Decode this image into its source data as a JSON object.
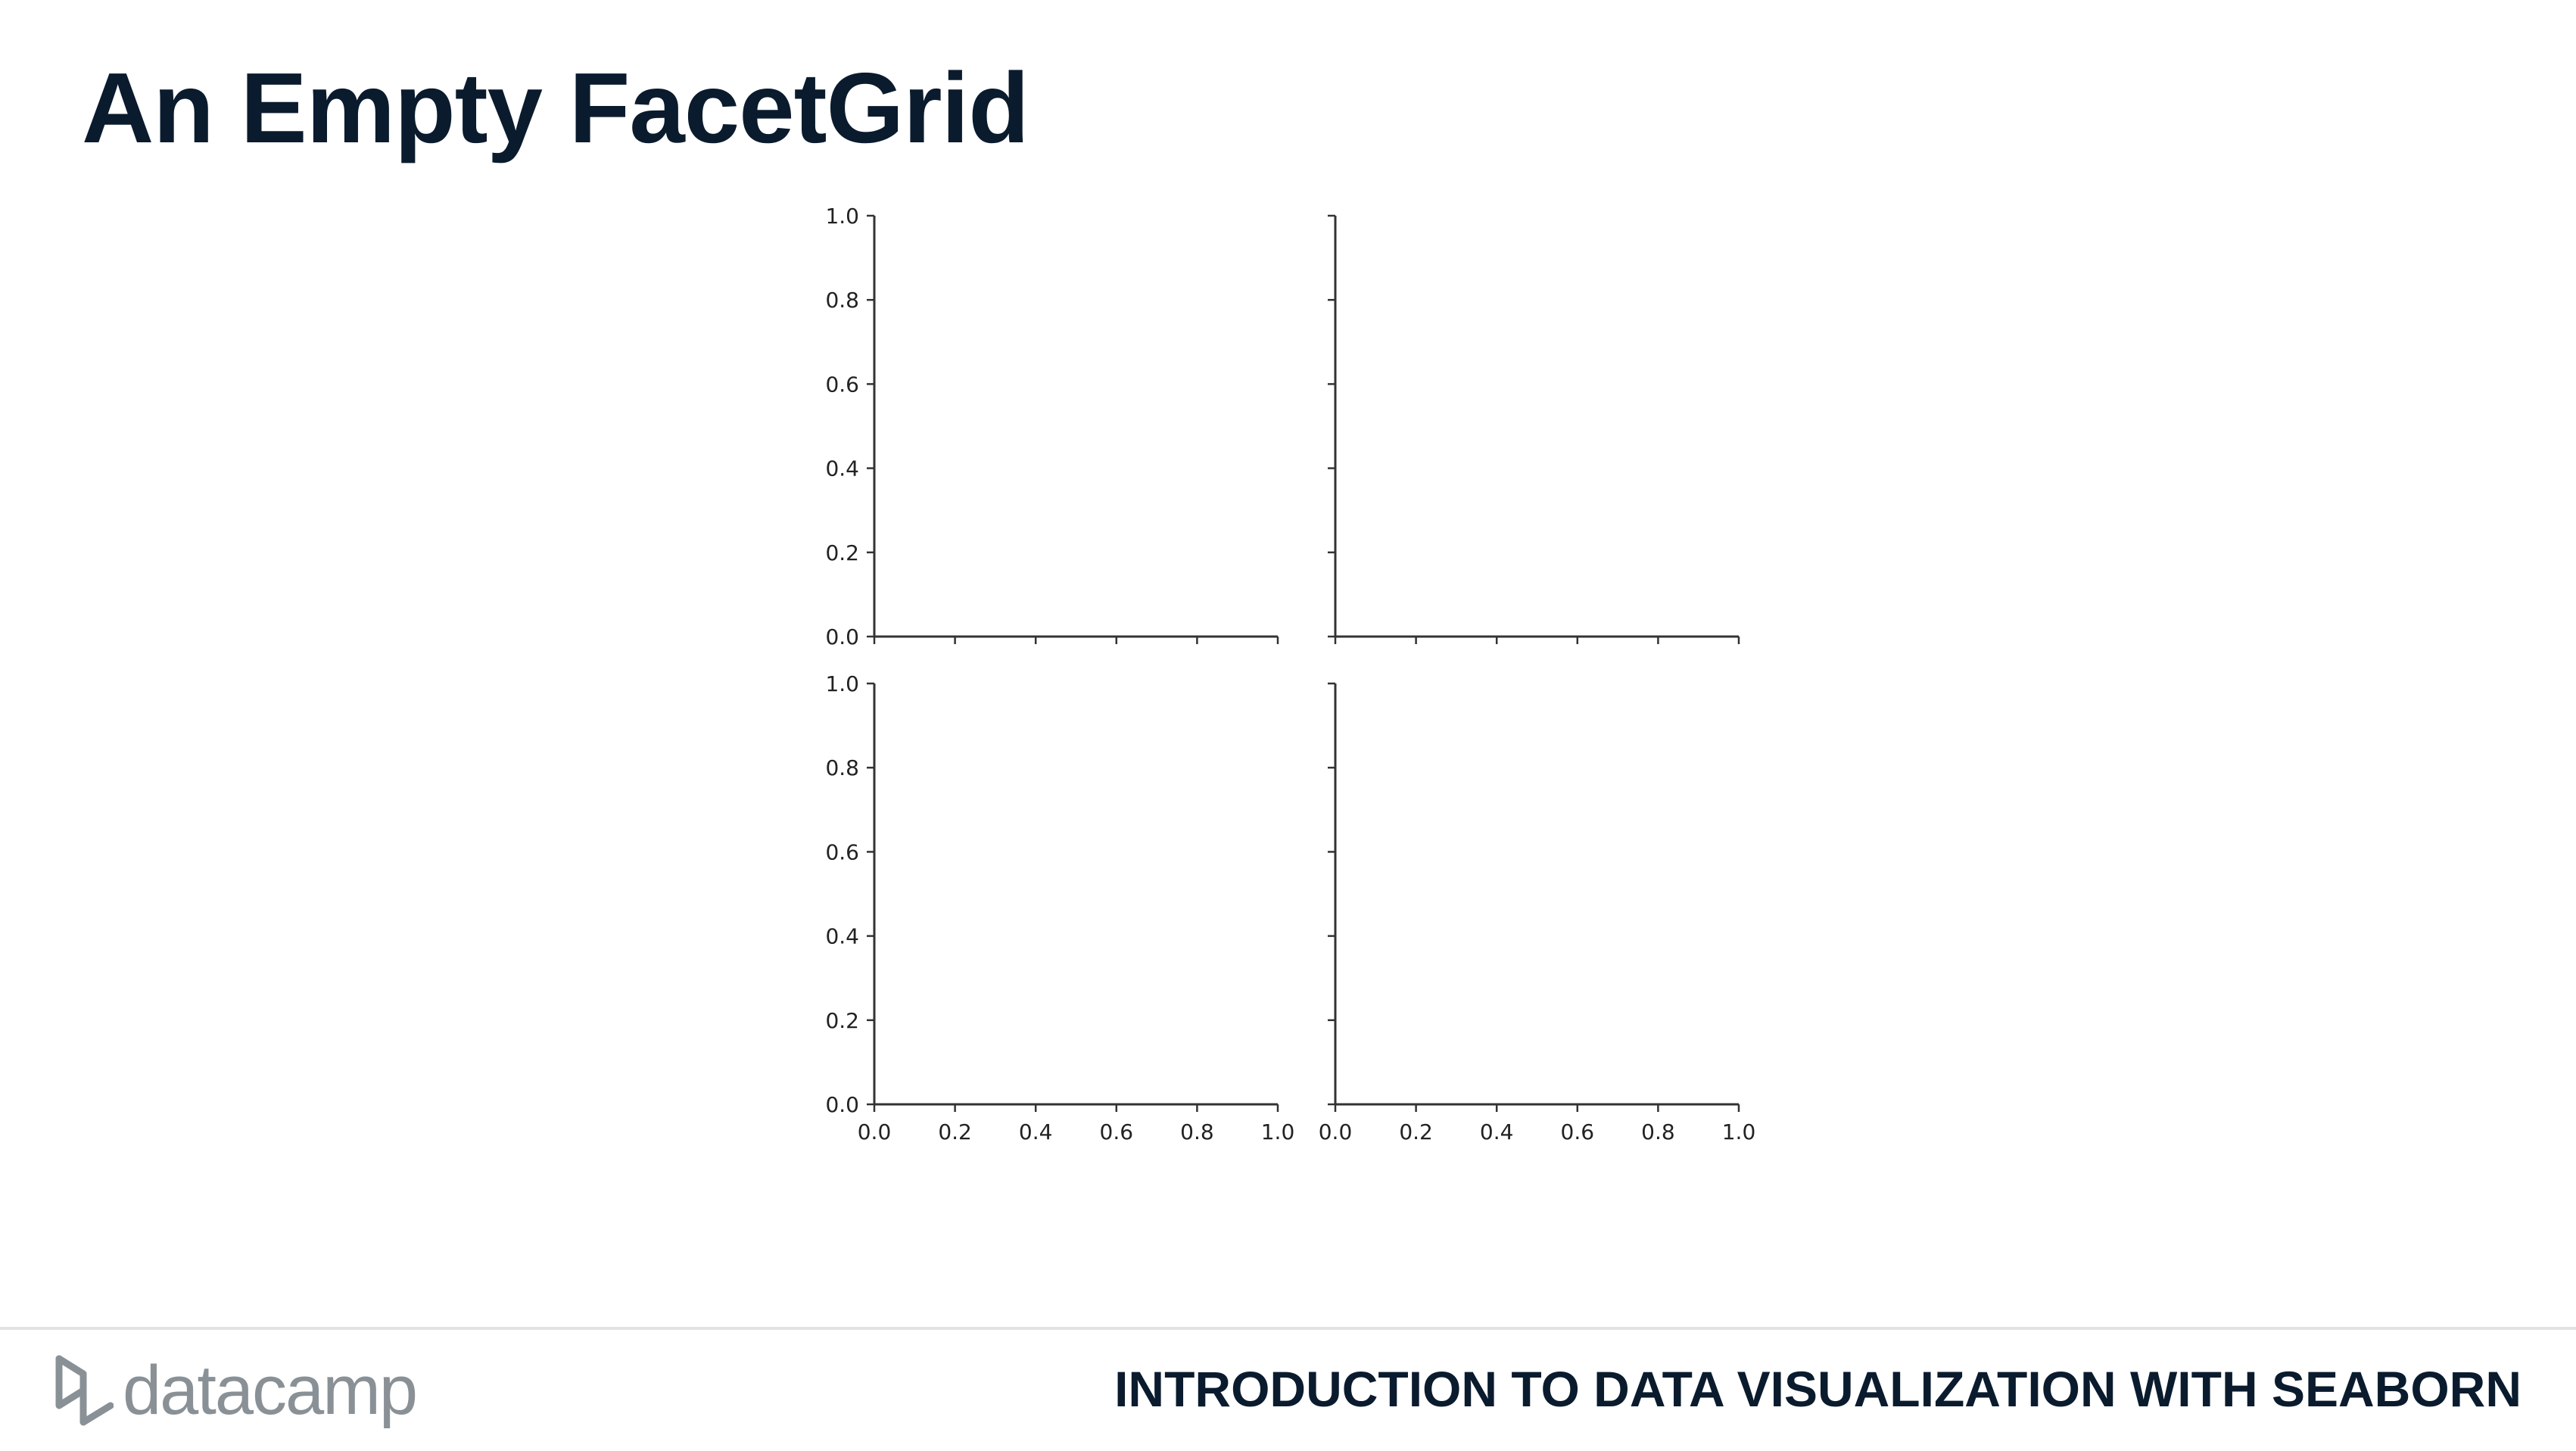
{
  "slide": {
    "title": "An Empty FacetGrid"
  },
  "footer": {
    "logo_text": "datacamp",
    "course_title": "INTRODUCTION TO DATA VISUALIZATION WITH SEABORN"
  },
  "colors": {
    "title": "#0b1b2e",
    "axis": "#333333",
    "tick_label": "#222222",
    "logo": "#8a9196",
    "divider": "#e3e3e3"
  },
  "chart_data": {
    "type": "facet_grid",
    "rows": 2,
    "cols": 2,
    "title": "",
    "xlabel": "",
    "ylabel": "",
    "xlim": [
      0.0,
      1.0
    ],
    "ylim": [
      0.0,
      1.0
    ],
    "grid": false,
    "sharex": true,
    "sharey": true,
    "xticks": [
      "0.0",
      "0.2",
      "0.4",
      "0.6",
      "0.8",
      "1.0"
    ],
    "yticks": [
      "0.0",
      "0.2",
      "0.4",
      "0.6",
      "0.8",
      "1.0"
    ],
    "facets": [
      {
        "row": 0,
        "col": 0,
        "series": []
      },
      {
        "row": 0,
        "col": 1,
        "series": []
      },
      {
        "row": 1,
        "col": 0,
        "series": []
      },
      {
        "row": 1,
        "col": 1,
        "series": []
      }
    ]
  }
}
